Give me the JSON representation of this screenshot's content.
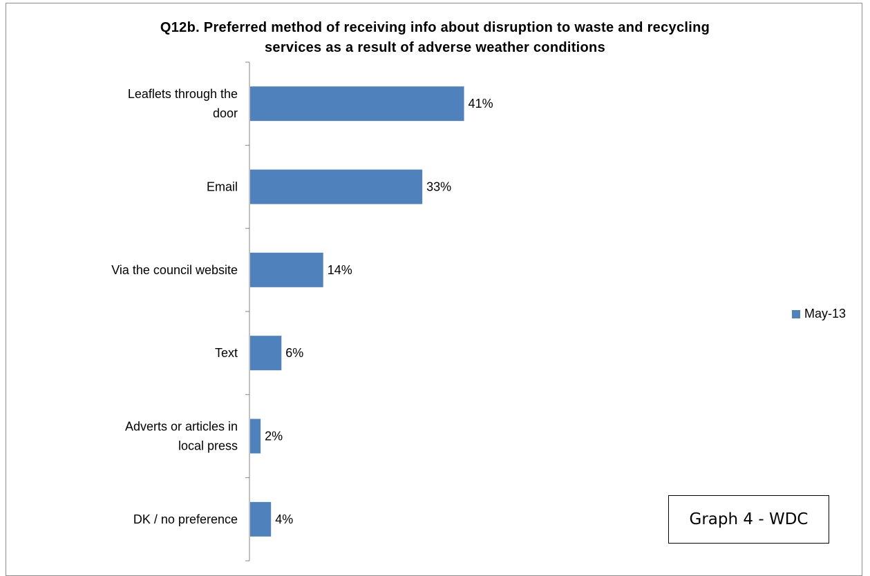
{
  "chart_data": {
    "type": "bar",
    "orientation": "horizontal",
    "title_lines": [
      "Q12b.  Preferred method of receiving info about disruption to waste and recycling",
      "services as a result of adverse weather conditions"
    ],
    "categories": [
      [
        "Leaflets through the",
        "door"
      ],
      [
        "Email"
      ],
      [
        "Via the council website"
      ],
      [
        "Text"
      ],
      [
        "Adverts or articles in",
        "local press"
      ],
      [
        "DK / no preference"
      ]
    ],
    "series": [
      {
        "name": "May-13",
        "values": [
          41,
          33,
          14,
          6,
          2,
          4
        ],
        "labels": [
          "41%",
          "33%",
          "14%",
          "6%",
          "2%",
          "4%"
        ],
        "color": "#4f81bd"
      }
    ],
    "xlim": [
      0,
      100
    ],
    "grid": false,
    "legend_position": "right"
  },
  "annotation": {
    "text": "Graph 4 - WDC"
  }
}
